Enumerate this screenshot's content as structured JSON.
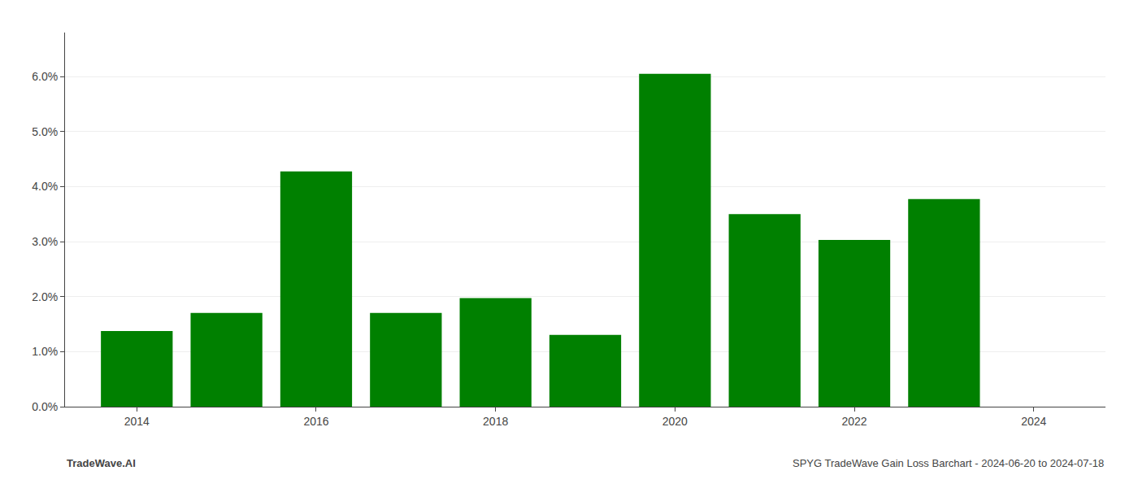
{
  "chart_data": {
    "type": "bar",
    "x": [
      2014,
      2015,
      2016,
      2017,
      2018,
      2019,
      2020,
      2021,
      2022,
      2023
    ],
    "values": [
      0.01375,
      0.01705,
      0.04275,
      0.01705,
      0.01975,
      0.01305,
      0.0605,
      0.035,
      0.0303,
      0.03775
    ],
    "color": "#008000",
    "xlim": [
      2013.2,
      2024.8
    ],
    "xticks": [
      2014,
      2016,
      2018,
      2020,
      2022,
      2024
    ],
    "ylim": [
      0.0,
      0.068
    ],
    "yticks": [
      {
        "value": 0.0,
        "label": "0.0%"
      },
      {
        "value": 0.01,
        "label": "1.0%"
      },
      {
        "value": 0.02,
        "label": "2.0%"
      },
      {
        "value": 0.03,
        "label": "3.0%"
      },
      {
        "value": 0.04,
        "label": "4.0%"
      },
      {
        "value": 0.05,
        "label": "5.0%"
      },
      {
        "value": 0.06,
        "label": "6.0%"
      }
    ],
    "grid": "y",
    "annotations": [
      {
        "text": "TradeWave.AI"
      },
      {
        "text": "SPYG TradeWave Gain Loss Barchart - 2024-06-20 to 2024-07-18"
      }
    ]
  }
}
